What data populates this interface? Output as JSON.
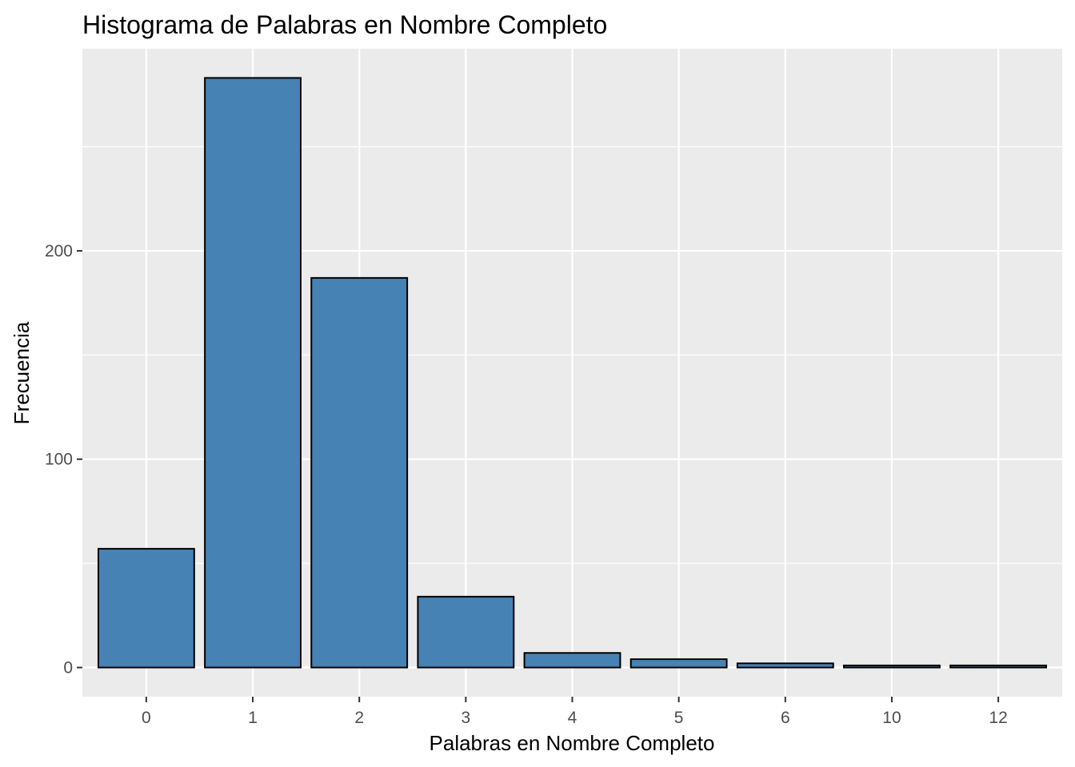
{
  "chart_data": {
    "type": "bar",
    "title": "Histograma de Palabras en Nombre Completo",
    "xlabel": "Palabras en Nombre Completo",
    "ylabel": "Frecuencia",
    "categories": [
      "0",
      "1",
      "2",
      "3",
      "4",
      "5",
      "6",
      "10",
      "12"
    ],
    "values": [
      57,
      283,
      187,
      34,
      7,
      4,
      2,
      1,
      1
    ],
    "yticks": [
      0,
      100,
      200
    ],
    "ylim": [
      -14,
      297
    ],
    "grid": true,
    "legend": "none",
    "colors": {
      "panel_background": "#ebebeb",
      "grid_line": "#ffffff",
      "bar_fill": "#4682b4",
      "bar_stroke": "#000000",
      "tick_text": "#4d4d4d",
      "tick_mark": "#333333"
    }
  }
}
